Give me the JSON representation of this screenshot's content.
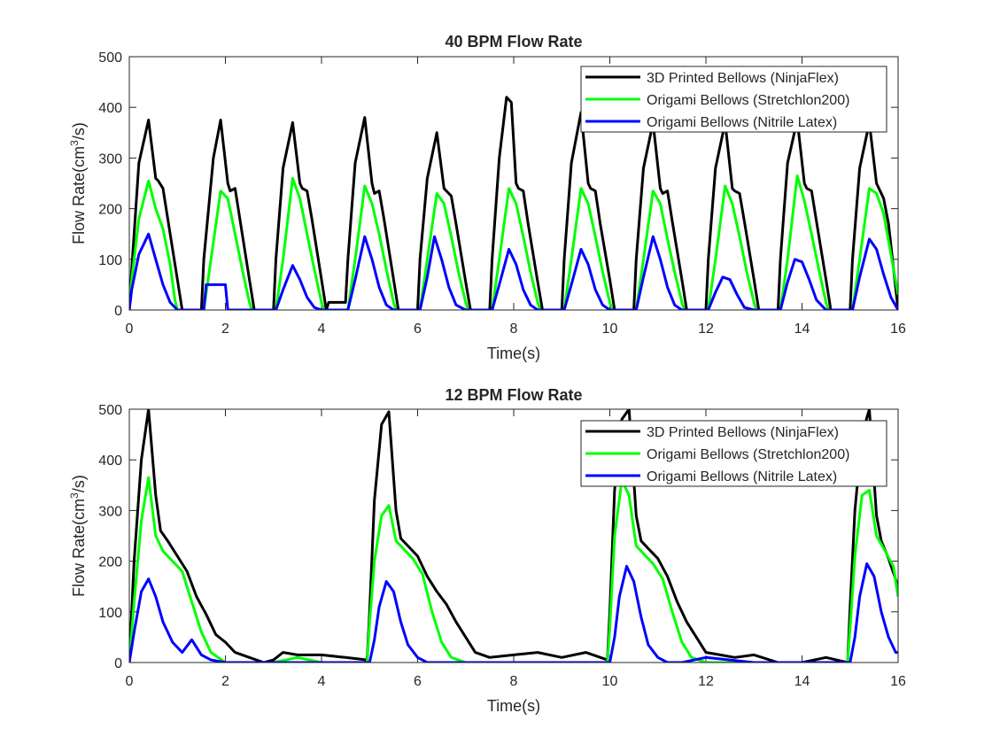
{
  "chart_data": [
    {
      "type": "line",
      "title": "40 BPM Flow Rate",
      "xlabel": "Time(s)",
      "ylabel_main": "Flow Rate(cm",
      "ylabel_sup": "3",
      "ylabel_tail": "/s)",
      "xlim": [
        0,
        16
      ],
      "ylim": [
        0,
        500
      ],
      "xticks": [
        0,
        2,
        4,
        6,
        8,
        10,
        12,
        14,
        16
      ],
      "yticks": [
        0,
        100,
        200,
        300,
        400,
        500
      ],
      "grid": false,
      "legend_position": "top-right",
      "series": [
        {
          "name": "3D Printed Bellows (NinjaFlex)",
          "color": "#000000",
          "x": [
            0,
            0.05,
            0.2,
            0.4,
            0.55,
            0.6,
            0.7,
            0.8,
            1.0,
            1.1,
            1.15,
            1.5,
            1.55,
            1.75,
            1.9,
            2.05,
            2.1,
            2.2,
            2.3,
            2.5,
            2.6,
            2.65,
            3.0,
            3.05,
            3.2,
            3.4,
            3.55,
            3.6,
            3.7,
            3.8,
            4.0,
            4.1,
            4.15,
            4.2,
            4.25,
            4.5,
            4.55,
            4.7,
            4.9,
            5.05,
            5.1,
            5.2,
            5.3,
            5.5,
            5.6,
            5.65,
            6.0,
            6.05,
            6.2,
            6.4,
            6.55,
            6.6,
            6.7,
            6.8,
            7.0,
            7.1,
            7.15,
            7.5,
            7.55,
            7.7,
            7.85,
            7.95,
            8.05,
            8.1,
            8.2,
            8.3,
            8.5,
            8.6,
            8.65,
            9.0,
            9.05,
            9.2,
            9.4,
            9.55,
            9.6,
            9.7,
            9.8,
            10.0,
            10.1,
            10.15,
            10.5,
            10.55,
            10.7,
            10.9,
            11.05,
            11.1,
            11.2,
            11.3,
            11.5,
            11.6,
            11.65,
            12.0,
            12.05,
            12.2,
            12.4,
            12.55,
            12.6,
            12.7,
            12.8,
            13.0,
            13.1,
            13.15,
            13.5,
            13.55,
            13.7,
            13.9,
            14.05,
            14.1,
            14.2,
            14.3,
            14.5,
            14.6,
            14.65,
            15.0,
            15.05,
            15.2,
            15.4,
            15.55,
            15.6,
            15.7,
            15.8,
            16.0
          ],
          "y": [
            0,
            80,
            290,
            375,
            260,
            255,
            240,
            180,
            60,
            0,
            0,
            0,
            100,
            300,
            375,
            250,
            235,
            240,
            180,
            60,
            0,
            0,
            0,
            100,
            280,
            370,
            250,
            240,
            235,
            180,
            60,
            0,
            15,
            15,
            15,
            15,
            100,
            290,
            380,
            250,
            230,
            235,
            180,
            60,
            0,
            0,
            0,
            100,
            260,
            350,
            240,
            235,
            225,
            170,
            55,
            0,
            0,
            0,
            100,
            300,
            420,
            410,
            250,
            240,
            235,
            170,
            55,
            0,
            0,
            0,
            100,
            290,
            390,
            250,
            240,
            235,
            170,
            60,
            0,
            0,
            0,
            100,
            280,
            370,
            240,
            230,
            235,
            175,
            60,
            0,
            0,
            0,
            100,
            280,
            370,
            240,
            235,
            230,
            175,
            60,
            0,
            0,
            0,
            100,
            290,
            375,
            250,
            240,
            235,
            175,
            60,
            0,
            0,
            0,
            100,
            280,
            370,
            250,
            240,
            220,
            170,
            0
          ]
        },
        {
          "name": "Origami Bellows (Stretchlon200)",
          "color": "#00ff00",
          "x": [
            0,
            0.05,
            0.2,
            0.4,
            0.55,
            0.7,
            0.85,
            0.95,
            1.0,
            1.55,
            1.7,
            1.9,
            2.05,
            2.2,
            2.35,
            2.5,
            2.55,
            3.05,
            3.2,
            3.4,
            3.55,
            3.7,
            3.85,
            4.0,
            4.05,
            4.55,
            4.7,
            4.9,
            5.05,
            5.2,
            5.35,
            5.5,
            5.55,
            6.05,
            6.2,
            6.4,
            6.55,
            6.7,
            6.85,
            7.0,
            7.05,
            7.55,
            7.7,
            7.9,
            8.05,
            8.2,
            8.35,
            8.5,
            8.55,
            9.05,
            9.2,
            9.4,
            9.55,
            9.7,
            9.85,
            10.0,
            10.05,
            10.55,
            10.7,
            10.9,
            11.05,
            11.2,
            11.35,
            11.5,
            11.55,
            12.05,
            12.2,
            12.4,
            12.55,
            12.7,
            12.85,
            13.0,
            13.05,
            13.55,
            13.7,
            13.9,
            14.05,
            14.2,
            14.35,
            14.5,
            14.55,
            15.05,
            15.2,
            15.4,
            15.55,
            15.7,
            15.85,
            16.0
          ],
          "y": [
            0,
            60,
            180,
            255,
            200,
            160,
            90,
            20,
            0,
            0,
            100,
            235,
            220,
            150,
            80,
            15,
            0,
            0,
            100,
            260,
            220,
            150,
            80,
            15,
            0,
            0,
            100,
            245,
            210,
            150,
            80,
            15,
            0,
            0,
            100,
            230,
            210,
            145,
            75,
            15,
            0,
            0,
            100,
            240,
            210,
            145,
            75,
            15,
            0,
            0,
            100,
            240,
            210,
            145,
            75,
            15,
            0,
            0,
            100,
            235,
            210,
            140,
            75,
            15,
            0,
            0,
            100,
            245,
            210,
            145,
            75,
            15,
            0,
            0,
            100,
            265,
            215,
            150,
            80,
            15,
            0,
            0,
            100,
            240,
            230,
            190,
            110,
            30
          ]
        },
        {
          "name": "Origami Bellows (Nitrile Latex)",
          "color": "#0000ff",
          "x": [
            0,
            0.05,
            0.2,
            0.4,
            0.55,
            0.7,
            0.85,
            1.0,
            1.55,
            1.6,
            2.0,
            2.05,
            2.5,
            3.05,
            3.2,
            3.4,
            3.55,
            3.7,
            3.85,
            4.0,
            4.55,
            4.7,
            4.9,
            5.05,
            5.2,
            5.35,
            5.5,
            6.05,
            6.2,
            6.35,
            6.5,
            6.65,
            6.8,
            7.0,
            7.55,
            7.7,
            7.9,
            8.05,
            8.2,
            8.35,
            8.5,
            9.05,
            9.2,
            9.4,
            9.55,
            9.7,
            9.85,
            10.0,
            10.55,
            10.7,
            10.9,
            11.05,
            11.2,
            11.35,
            11.5,
            12.05,
            12.2,
            12.35,
            12.5,
            12.65,
            12.8,
            13.0,
            13.55,
            13.7,
            13.85,
            14.0,
            14.15,
            14.3,
            14.5,
            15.05,
            15.2,
            15.4,
            15.55,
            15.7,
            15.85,
            16.0
          ],
          "y": [
            0,
            40,
            110,
            150,
            100,
            50,
            15,
            0,
            0,
            50,
            50,
            0,
            0,
            0,
            40,
            88,
            60,
            25,
            5,
            0,
            0,
            60,
            145,
            100,
            45,
            10,
            0,
            0,
            65,
            145,
            100,
            45,
            10,
            0,
            0,
            50,
            120,
            90,
            40,
            10,
            0,
            0,
            50,
            120,
            90,
            40,
            10,
            0,
            0,
            65,
            145,
            100,
            45,
            10,
            0,
            0,
            35,
            65,
            60,
            30,
            5,
            0,
            0,
            55,
            100,
            95,
            60,
            20,
            0,
            0,
            65,
            140,
            120,
            70,
            25,
            0
          ]
        }
      ]
    },
    {
      "type": "line",
      "title": "12 BPM Flow Rate",
      "xlabel": "Time(s)",
      "ylabel_main": "Flow Rate(cm",
      "ylabel_sup": "3",
      "ylabel_tail": "/s)",
      "xlim": [
        0,
        16
      ],
      "ylim": [
        0,
        500
      ],
      "xticks": [
        0,
        2,
        4,
        6,
        8,
        10,
        12,
        14,
        16
      ],
      "yticks": [
        0,
        100,
        200,
        300,
        400,
        500
      ],
      "grid": false,
      "legend_position": "top-right",
      "series": [
        {
          "name": "3D Printed Bellows (NinjaFlex)",
          "color": "#000000",
          "x": [
            0,
            0.1,
            0.25,
            0.4,
            0.55,
            0.65,
            0.8,
            1.0,
            1.2,
            1.4,
            1.6,
            1.8,
            2.0,
            2.2,
            2.5,
            2.8,
            3.0,
            3.2,
            3.5,
            4.0,
            4.5,
            4.95,
            5.0,
            5.1,
            5.25,
            5.4,
            5.55,
            5.65,
            5.8,
            6.0,
            6.2,
            6.4,
            6.6,
            6.8,
            7.0,
            7.2,
            7.5,
            8.0,
            8.5,
            9.0,
            9.5,
            9.95,
            10.0,
            10.1,
            10.25,
            10.4,
            10.55,
            10.65,
            10.8,
            11.0,
            11.2,
            11.4,
            11.6,
            11.8,
            12.0,
            12.3,
            12.6,
            13.0,
            13.5,
            14.0,
            14.5,
            14.95,
            15.0,
            15.1,
            15.25,
            15.4,
            15.55,
            15.65,
            15.8,
            16.0
          ],
          "y": [
            0,
            200,
            400,
            500,
            330,
            260,
            240,
            210,
            180,
            130,
            95,
            55,
            40,
            20,
            10,
            0,
            5,
            20,
            15,
            15,
            10,
            5,
            100,
            320,
            470,
            495,
            300,
            245,
            230,
            210,
            170,
            140,
            115,
            80,
            50,
            20,
            10,
            15,
            20,
            10,
            20,
            5,
            100,
            340,
            480,
            500,
            290,
            240,
            225,
            205,
            170,
            120,
            80,
            50,
            20,
            15,
            10,
            15,
            0,
            0,
            10,
            0,
            110,
            300,
            450,
            500,
            290,
            240,
            205,
            150
          ]
        },
        {
          "name": "Origami Bellows (Stretchlon200)",
          "color": "#00ff00",
          "x": [
            0,
            0.1,
            0.25,
            0.4,
            0.55,
            0.7,
            0.9,
            1.1,
            1.3,
            1.5,
            1.7,
            2.0,
            2.5,
            3.0,
            3.5,
            4.0,
            4.5,
            4.95,
            5.0,
            5.1,
            5.25,
            5.4,
            5.55,
            5.7,
            5.9,
            6.1,
            6.3,
            6.5,
            6.7,
            7.0,
            7.5,
            8.0,
            8.5,
            9.0,
            9.5,
            9.95,
            10.0,
            10.1,
            10.25,
            10.4,
            10.55,
            10.7,
            10.9,
            11.1,
            11.3,
            11.5,
            11.7,
            12.0,
            12.5,
            13.0,
            13.5,
            14.0,
            14.5,
            14.95,
            15.0,
            15.1,
            15.25,
            15.4,
            15.55,
            15.7,
            15.9,
            16.0
          ],
          "y": [
            0,
            120,
            280,
            365,
            250,
            220,
            200,
            180,
            120,
            60,
            20,
            0,
            0,
            0,
            10,
            0,
            0,
            0,
            80,
            200,
            290,
            310,
            240,
            225,
            205,
            175,
            100,
            40,
            10,
            0,
            0,
            0,
            0,
            0,
            0,
            0,
            70,
            250,
            360,
            330,
            230,
            215,
            195,
            165,
            100,
            40,
            10,
            0,
            0,
            0,
            0,
            0,
            0,
            0,
            70,
            210,
            330,
            340,
            250,
            225,
            190,
            130
          ]
        },
        {
          "name": "Origami Bellows (Nitrile Latex)",
          "color": "#0000ff",
          "x": [
            0,
            0.1,
            0.25,
            0.4,
            0.55,
            0.7,
            0.9,
            1.1,
            1.3,
            1.5,
            1.7,
            2.0,
            2.5,
            3.0,
            3.5,
            4.0,
            4.5,
            5.0,
            5.1,
            5.2,
            5.35,
            5.5,
            5.65,
            5.8,
            6.0,
            6.2,
            6.5,
            7.0,
            7.5,
            8.0,
            8.5,
            9.0,
            9.5,
            10.0,
            10.1,
            10.2,
            10.35,
            10.5,
            10.65,
            10.8,
            11.0,
            11.2,
            11.5,
            12.0,
            12.5,
            13.0,
            13.5,
            14.0,
            14.5,
            15.0,
            15.1,
            15.2,
            15.35,
            15.5,
            15.65,
            15.8,
            15.95,
            16.0
          ],
          "y": [
            0,
            60,
            140,
            165,
            130,
            80,
            40,
            20,
            45,
            15,
            5,
            0,
            0,
            0,
            0,
            0,
            0,
            0,
            45,
            110,
            160,
            140,
            80,
            35,
            10,
            0,
            0,
            0,
            0,
            0,
            0,
            0,
            0,
            0,
            50,
            130,
            190,
            160,
            90,
            35,
            10,
            0,
            0,
            10,
            5,
            0,
            0,
            0,
            0,
            0,
            50,
            130,
            195,
            170,
            100,
            50,
            20,
            20
          ]
        }
      ]
    }
  ]
}
